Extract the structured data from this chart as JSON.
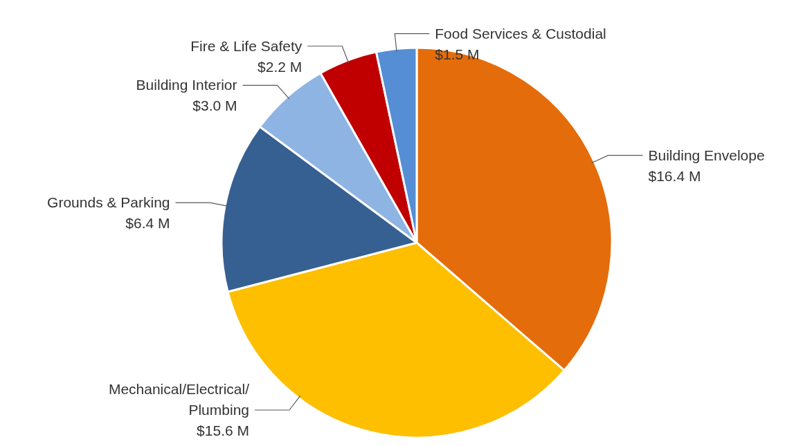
{
  "chart_data": {
    "type": "pie",
    "categories": [
      "Building Envelope",
      "Mechanical/Electrical/Plumbing",
      "Grounds & Parking",
      "Building Interior",
      "Fire & Life Safety",
      "Food Services & Custodial"
    ],
    "values": [
      16.4,
      15.6,
      6.4,
      3.0,
      2.2,
      1.5
    ],
    "value_labels": [
      "$16.4 M",
      "$15.6 M",
      "$6.4 M",
      "$3.0 M",
      "$2.2 M",
      "$1.5 M"
    ],
    "colors": [
      "#e46c0a",
      "#fdbf00",
      "#376092",
      "#8eb4e3",
      "#c00000",
      "#558ed5"
    ]
  }
}
